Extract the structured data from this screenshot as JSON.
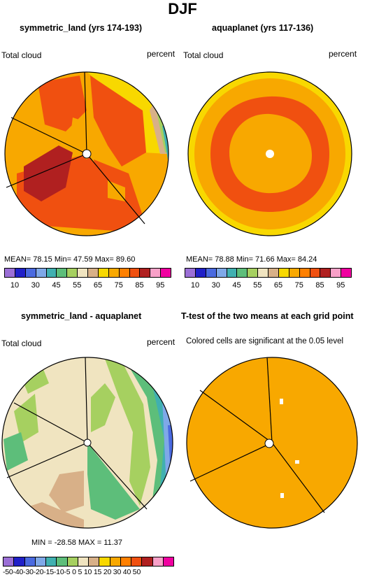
{
  "title": "DJF",
  "panels": {
    "p1": {
      "title": "symmetric_land (yrs 174-193)",
      "left_label": "Total cloud",
      "right_label": "percent",
      "stats": "MEAN=  78.15   Min=  47.59   Max=  89.60"
    },
    "p2": {
      "title": "aquaplanet (yrs 117-136)",
      "left_label": "Total cloud",
      "right_label": "percent",
      "stats": "MEAN=  78.88   Min=  71.66   Max=  84.24"
    },
    "p3": {
      "title": "symmetric_land - aquaplanet",
      "left_label": "Total cloud",
      "right_label": "percent",
      "stats": "MIN = -28.58  MAX =  11.37"
    },
    "p4": {
      "title": "T-test of the two means at each grid point",
      "subtitle": "Colored cells are significant at the 0.05 level"
    }
  },
  "colorbar_top": {
    "colors": [
      "#9b6fd6",
      "#2020c8",
      "#4a6ae0",
      "#7fa8e8",
      "#40b0b0",
      "#5dbe7a",
      "#a6d060",
      "#f0e4c0",
      "#d8b088",
      "#f8d800",
      "#f8a800",
      "#ff8000",
      "#f05010",
      "#b02020",
      "#f8a0c8",
      "#f000a0"
    ],
    "ticks": [
      "10",
      "30",
      "45",
      "55",
      "65",
      "75",
      "85",
      "95"
    ]
  },
  "colorbar_bottom": {
    "colors": [
      "#9b6fd6",
      "#2020c8",
      "#4a6ae0",
      "#7fa8e8",
      "#40b0b0",
      "#5dbe7a",
      "#a6d060",
      "#f0e4c0",
      "#d8b088",
      "#f8d800",
      "#f8a800",
      "#ff8000",
      "#f05010",
      "#b02020",
      "#f8a0c8",
      "#f000a0"
    ],
    "ticks": "-50-40-30-20-15-10-5 0  5 10 15 20 30 40 50"
  },
  "colors": {
    "orange": "#f8a800",
    "red_orange": "#f05010",
    "dark_red": "#b02020",
    "yellow": "#f8d800",
    "beige": "#f0e4c0",
    "tan": "#d8b088",
    "light_green": "#a6d060",
    "green": "#5dbe7a",
    "teal": "#40b0b0",
    "light_blue": "#7fa8e8",
    "blue": "#4a6ae0"
  }
}
